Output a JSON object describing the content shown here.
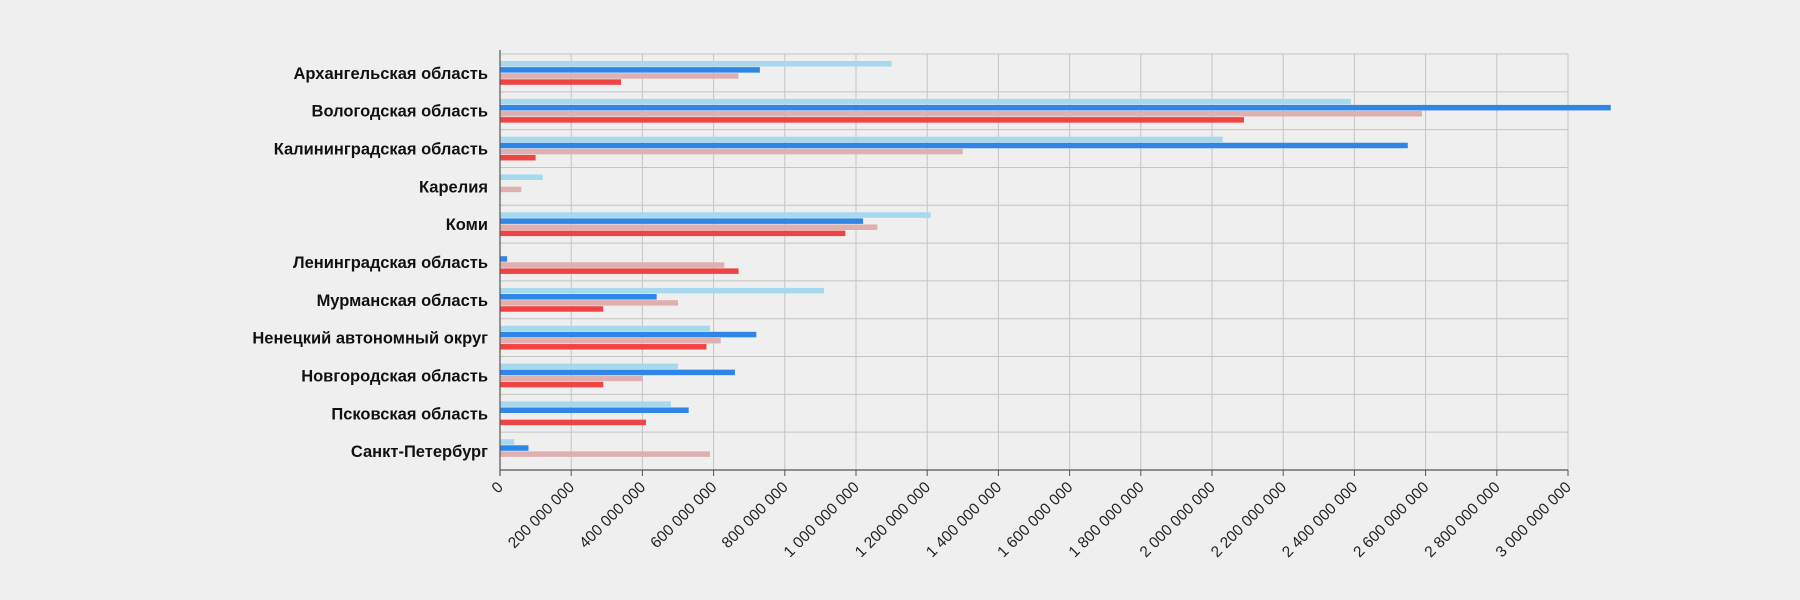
{
  "chart_data": {
    "type": "bar",
    "orientation": "horizontal",
    "categories": [
      "Архангельская область",
      "Вологодская область",
      "Калининградская область",
      "Карелия",
      "Коми",
      "Ленинградская область",
      "Мурманская область",
      "Ненецкий автономный округ",
      "Новгородская область",
      "Псковская область",
      "Санкт-Петербург"
    ],
    "series": [
      {
        "color": "#a6d8ee",
        "values": [
          1100000000,
          2390000000,
          2030000000,
          120000000,
          1210000000,
          0,
          910000000,
          590000000,
          500000000,
          480000000,
          40000000
        ]
      },
      {
        "color": "#2f86e6",
        "values": [
          730000000,
          3120000000,
          2550000000,
          0,
          1020000000,
          20000000,
          440000000,
          720000000,
          660000000,
          530000000,
          80000000
        ]
      },
      {
        "color": "#e0b0b0",
        "values": [
          670000000,
          2590000000,
          1300000000,
          60000000,
          1060000000,
          630000000,
          500000000,
          620000000,
          400000000,
          0,
          590000000
        ]
      },
      {
        "color": "#ee4444",
        "values": [
          340000000,
          2090000000,
          100000000,
          0,
          970000000,
          670000000,
          290000000,
          580000000,
          290000000,
          410000000,
          0
        ]
      }
    ],
    "x_ticks": [
      "0",
      "200 000 000",
      "400 000 000",
      "600 000 000",
      "800 000 000",
      "1 000 000 000",
      "1 200 000 000",
      "1 400 000 000",
      "1 600 000 000",
      "1 800 000 000",
      "2 000 000 000",
      "2 200 000 000",
      "2 400 000 000",
      "2 600 000 000",
      "2 800 000 000",
      "3 000 000 000"
    ],
    "xlim": [
      0,
      3000000000
    ],
    "title": "",
    "xlabel": "",
    "ylabel": "",
    "grid": true,
    "legend": "none",
    "gridColor": "#c4c4c4",
    "axisColor": "#555555"
  }
}
